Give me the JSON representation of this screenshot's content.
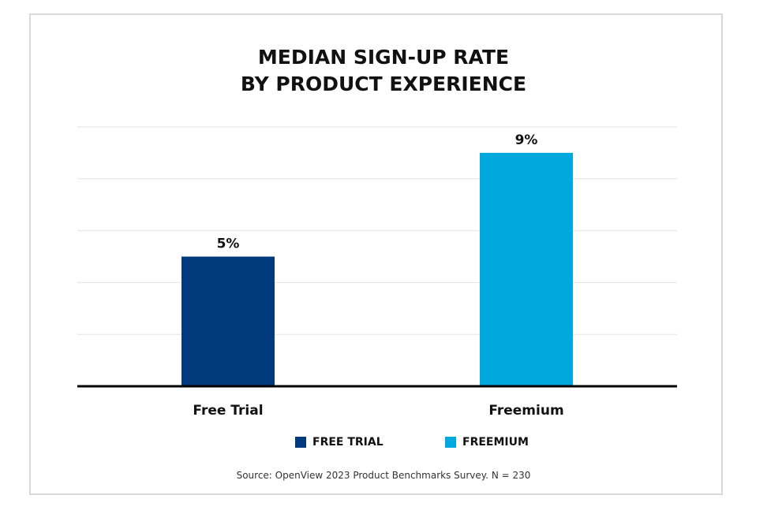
{
  "chart_data": {
    "type": "bar",
    "title": "MEDIAN SIGN-UP RATE BY PRODUCT EXPERIENCE",
    "title_lines": [
      "MEDIAN SIGN-UP RATE",
      "BY PRODUCT EXPERIENCE"
    ],
    "categories": [
      "Free Trial",
      "Freemium"
    ],
    "values": [
      5,
      9
    ],
    "data_labels": [
      "5%",
      "9%"
    ],
    "colors": [
      "#003a7d",
      "#00a8e0"
    ],
    "ylim": [
      0,
      10
    ],
    "gridlines": [
      2,
      4,
      6,
      8,
      10
    ],
    "grid": true,
    "y_axis_labels_shown": false,
    "legend": {
      "placement": "bottom",
      "entries": [
        "FREE TRIAL",
        "FREEMIUM"
      ]
    },
    "source": "Source: OpenView 2023 Product Benchmarks Survey. N = 230"
  }
}
